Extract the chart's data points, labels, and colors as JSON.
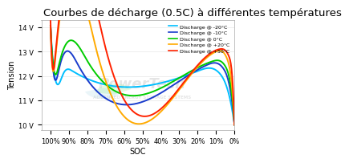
{
  "title": "Courbes de décharge (0.5C) à différentes températures",
  "xlabel": "SOC",
  "ylabel": "Tension",
  "background_color": "#ffffff",
  "title_fontsize": 9.5,
  "label_fontsize": 7,
  "tick_fontsize": 6,
  "yticks": [
    10,
    11,
    12,
    13,
    14
  ],
  "ytick_labels": [
    "10 V",
    "11 V",
    "12 V",
    "13 V",
    "14 V"
  ],
  "xtick_positions": [
    0,
    10,
    20,
    30,
    40,
    50,
    60,
    70,
    80,
    90,
    100
  ],
  "xtick_labels": [
    "0%",
    "10%",
    "20%",
    "30%",
    "40%",
    "50%",
    "60%",
    "70%",
    "80%",
    "90%",
    "100%"
  ],
  "ylim": [
    9.8,
    14.3
  ],
  "xlim": [
    0,
    105
  ],
  "series": [
    {
      "label": "Discharge @ -20°C",
      "color": "#00bfff",
      "lw": 1.4,
      "peak_x": 100,
      "peak_y": 14.05,
      "plateau_start_x": 97,
      "plateau_y": 11.8,
      "flat_y": 12.2,
      "drop_x": 4,
      "end_y": 10.0
    },
    {
      "label": "Discharge @ -10°C",
      "color": "#1a3ccc",
      "lw": 1.4,
      "peak_x": 100,
      "peak_y": 14.05,
      "plateau_y": 12.35,
      "flat_y": 12.45,
      "drop_x": 3,
      "end_y": 10.0
    },
    {
      "label": "Discharge @ 0°C",
      "color": "#00cc00",
      "lw": 1.4,
      "peak_x": 100,
      "peak_y": 14.05,
      "plateau_y": 12.55,
      "flat_y": 12.6,
      "drop_x": 2.5,
      "end_y": 10.0
    },
    {
      "label": "Discharge @ +20°C",
      "color": "#ffaa00",
      "lw": 1.4,
      "peak_x": 100,
      "peak_y": 14.05,
      "plateau_y": 13.0,
      "flat_y": 13.0,
      "drop_x": 2,
      "end_y": 10.0
    },
    {
      "label": "Discharge @ +50°C",
      "color": "#ff2200",
      "lw": 1.4,
      "peak_x": 100,
      "peak_y": 14.25,
      "plateau_y": 13.1,
      "flat_y": 13.1,
      "drop_x": 1.5,
      "end_y": 10.0
    }
  ],
  "watermark_text1": "PowerTech",
  "watermark_text2": "ADVANCED ENERGY STORAGE SYSTEMS",
  "grid_color": "#cccccc",
  "grid_alpha": 0.5
}
